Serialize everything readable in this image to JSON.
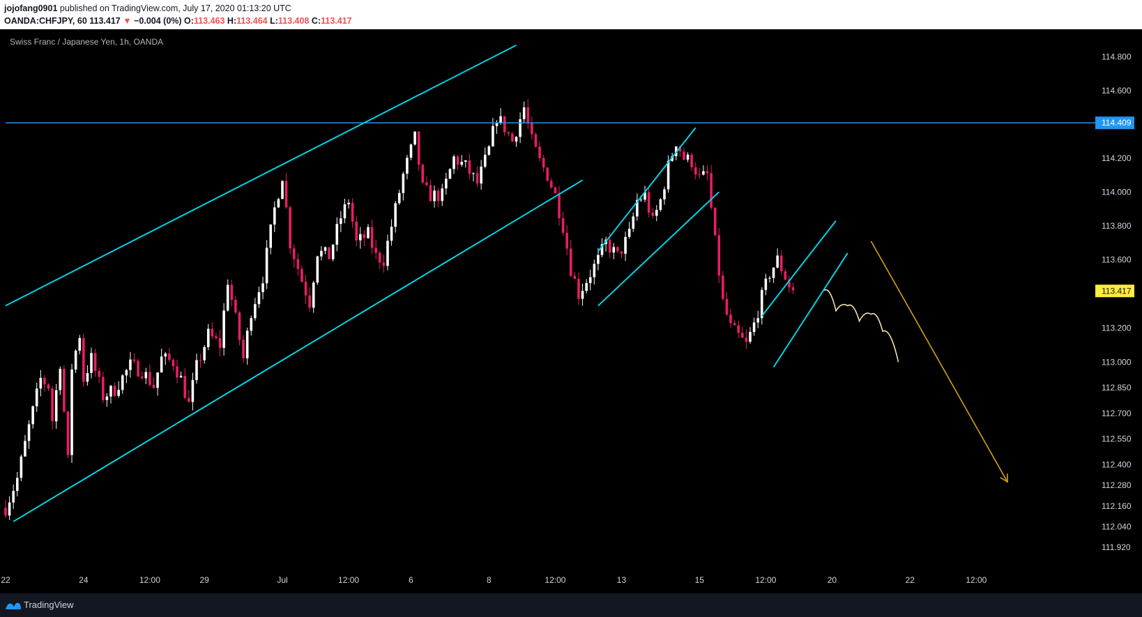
{
  "header": {
    "author": "jojofang0901",
    "published": "published on TradingView.com, July 17, 2020 01:13:20 UTC",
    "symbol": "OANDA:CHFJPY, 60",
    "last": "113.417",
    "arrow": "▼",
    "change": "−0.004 (0%)",
    "o_label": "O:",
    "o_value": "113.463",
    "h_label": "H:",
    "h_value": "113.464",
    "l_label": "L:",
    "l_value": "113.408",
    "c_label": "C:",
    "c_value": "113.417"
  },
  "footer": {
    "brand": "TradingView"
  },
  "colors": {
    "background": "#000000",
    "candle_up": "#ffffff",
    "candle_down": "#e91e63",
    "channel_line": "#00d4e6",
    "resistance_line": "#2196f3",
    "projection_arrow": "#d4a017",
    "projection_wave": "#f5deb3",
    "current_price_tag": "#ffeb3b"
  },
  "chart_data": {
    "type": "candlestick",
    "title": "Swiss Franc / Japanese Yen, 1h, OANDA",
    "y_scale": "log",
    "y_ticks": [
      "114.800",
      "114.600",
      "114.400",
      "114.200",
      "114.000",
      "113.800",
      "113.600",
      "113.400",
      "113.200",
      "113.000",
      "112.850",
      "112.700",
      "112.550",
      "112.400",
      "112.280",
      "112.160",
      "112.040",
      "111.920"
    ],
    "x_ticks": [
      "22",
      "24",
      "12:00",
      "29",
      "Jul",
      "12:00",
      "6",
      "8",
      "12:00",
      "13",
      "15",
      "12:00",
      "20",
      "22",
      "12:00"
    ],
    "x_tick_index": [
      0,
      20,
      37,
      51,
      71,
      88,
      104,
      124,
      141,
      158,
      178,
      195,
      212,
      232,
      249
    ],
    "x_range": [
      0,
      262
    ],
    "y_range": [
      111.86,
      114.94
    ],
    "resistance_level": "114.409",
    "current_price": "113.417",
    "close_path": [
      [
        0,
        112.15
      ],
      [
        3,
        112.32
      ],
      [
        6,
        112.62
      ],
      [
        9,
        112.9
      ],
      [
        11,
        112.86
      ],
      [
        12,
        112.66
      ],
      [
        14,
        113.0
      ],
      [
        16,
        112.42
      ],
      [
        17,
        112.97
      ],
      [
        19,
        113.16
      ],
      [
        20,
        112.9
      ],
      [
        22,
        113.02
      ],
      [
        25,
        112.8
      ],
      [
        28,
        112.84
      ],
      [
        32,
        112.98
      ],
      [
        35,
        112.95
      ],
      [
        38,
        112.86
      ],
      [
        40,
        113.02
      ],
      [
        43,
        113.0
      ],
      [
        45,
        112.9
      ],
      [
        47,
        112.75
      ],
      [
        49,
        112.97
      ],
      [
        52,
        113.16
      ],
      [
        55,
        113.1
      ],
      [
        57,
        113.48
      ],
      [
        59,
        113.25
      ],
      [
        61,
        113.02
      ],
      [
        63,
        113.3
      ],
      [
        66,
        113.5
      ],
      [
        69,
        113.9
      ],
      [
        71,
        114.1
      ],
      [
        73,
        113.7
      ],
      [
        76,
        113.48
      ],
      [
        78,
        113.35
      ],
      [
        80,
        113.65
      ],
      [
        83,
        113.62
      ],
      [
        86,
        113.85
      ],
      [
        88,
        113.95
      ],
      [
        90,
        113.7
      ],
      [
        93,
        113.75
      ],
      [
        95,
        113.62
      ],
      [
        97,
        113.6
      ],
      [
        99,
        113.8
      ],
      [
        102,
        114.1
      ],
      [
        105,
        114.32
      ],
      [
        107,
        114.02
      ],
      [
        109,
        113.98
      ],
      [
        112,
        113.98
      ],
      [
        115,
        114.2
      ],
      [
        118,
        114.15
      ],
      [
        121,
        114.05
      ],
      [
        124,
        114.25
      ],
      [
        126,
        114.45
      ],
      [
        128,
        114.38
      ],
      [
        130,
        114.3
      ],
      [
        133,
        114.5
      ],
      [
        135,
        114.3
      ],
      [
        137,
        114.18
      ],
      [
        139,
        114.1
      ],
      [
        141,
        113.98
      ],
      [
        143,
        113.8
      ],
      [
        145,
        113.55
      ],
      [
        147,
        113.4
      ],
      [
        150,
        113.52
      ],
      [
        152,
        113.6
      ],
      [
        154,
        113.7
      ],
      [
        157,
        113.62
      ],
      [
        160,
        113.75
      ],
      [
        162,
        113.95
      ],
      [
        164,
        113.98
      ],
      [
        166,
        113.82
      ],
      [
        168,
        113.95
      ],
      [
        170,
        114.15
      ],
      [
        172,
        114.3
      ],
      [
        174,
        114.2
      ],
      [
        176,
        114.18
      ],
      [
        178,
        114.08
      ],
      [
        180,
        114.1
      ],
      [
        182,
        113.7
      ],
      [
        184,
        113.35
      ],
      [
        186,
        113.2
      ],
      [
        188,
        113.15
      ],
      [
        190,
        113.1
      ],
      [
        192,
        113.22
      ],
      [
        194,
        113.38
      ],
      [
        196,
        113.52
      ],
      [
        198,
        113.6
      ],
      [
        199,
        113.55
      ],
      [
        201,
        113.45
      ],
      [
        202,
        113.42
      ]
    ],
    "channel_lines": [
      {
        "name": "big-upper",
        "from": [
          0,
          113.33
        ],
        "to": [
          131,
          114.87
        ]
      },
      {
        "name": "big-lower",
        "from": [
          2,
          112.07
        ],
        "to": [
          148,
          114.07
        ]
      },
      {
        "name": "flag1-upper",
        "from": [
          152,
          113.65
        ],
        "to": [
          177,
          114.38
        ]
      },
      {
        "name": "flag1-lower",
        "from": [
          152,
          113.33
        ],
        "to": [
          183,
          114.0
        ]
      },
      {
        "name": "flag2-upper",
        "from": [
          194,
          113.27
        ],
        "to": [
          213,
          113.83
        ]
      },
      {
        "name": "flag2-lower",
        "from": [
          197,
          112.97
        ],
        "to": [
          216,
          113.64
        ]
      }
    ],
    "projection_wave": [
      [
        210,
        113.42
      ],
      [
        213,
        113.3
      ],
      [
        216,
        113.33
      ],
      [
        219,
        113.24
      ],
      [
        222,
        113.28
      ],
      [
        225,
        113.18
      ],
      [
        229,
        113.0
      ]
    ],
    "projection_arrow": {
      "from": [
        222,
        113.71
      ],
      "to": [
        257,
        112.3
      ]
    }
  }
}
